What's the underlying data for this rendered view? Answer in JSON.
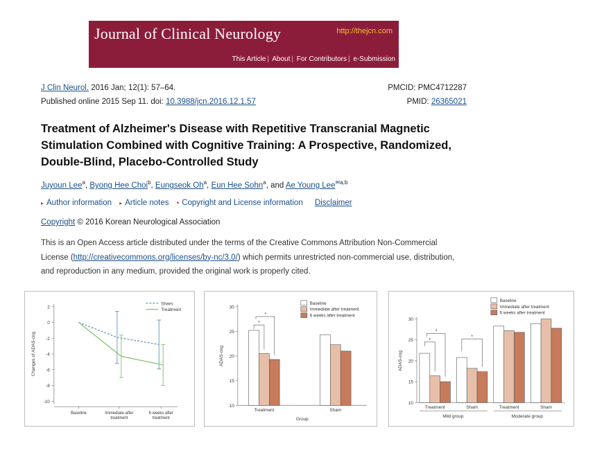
{
  "banner": {
    "journal_title": "Journal of Clinical Neurology",
    "url": "http://thejcn.com",
    "nav": [
      "This Article",
      "About",
      "For Contributors",
      "e-Submission"
    ]
  },
  "citation": {
    "journal_abbrev": "J Clin Neurol.",
    "issue": "2016 Jan; 12(1): 57–64.",
    "published_prefix": "Published online 2015 Sep 11. doi:",
    "doi": "10.3988/jcn.2016.12.1.57",
    "pmcid_label": "PMCID:",
    "pmcid": "PMC4712287",
    "pmid_label": "PMID:",
    "pmid": "26365021"
  },
  "article": {
    "title": "Treatment of Alzheimer's Disease with Repetitive Transcranial Magnetic Stimulation Combined with Cognitive Training: A Prospective, Randomized, Double-Blind, Placebo-Controlled Study",
    "authors": [
      {
        "name": "Juyoun Lee",
        "sup": "a"
      },
      {
        "name": "Byong Hee Choi",
        "sup": "b"
      },
      {
        "name": "Eungseok Oh",
        "sup": "a"
      },
      {
        "name": "Eun Hee Sohn",
        "sup": "a"
      },
      {
        "name": "Ae Young Lee",
        "sup": "a,b"
      }
    ],
    "and_word": "and",
    "info_links": [
      "Author information",
      "Article notes",
      "Copyright and License information",
      "Disclaimer"
    ],
    "copyright_link": "Copyright",
    "copyright_text": "© 2016 Korean Neurological Association",
    "license_pre": "This is an Open Access article distributed under the terms of the Creative Commons Attribution Non-Commercial License (",
    "license_url": "http://creativecommons.org/licenses/by-nc/3.0/",
    "license_post": ") which permits unrestricted non-commercial use, distribution, and reproduction in any medium, provided the original work is properly cited."
  },
  "colors": {
    "banner_bg": "#8c1d3a",
    "banner_url": "#f2c230",
    "link": "#1a4f8b",
    "baseline_bar": "#ffffff",
    "immediate_bar": "#e7bfa8",
    "six_weeks_bar": "#c77a5c",
    "sham_line": "#6f9fb6",
    "treatment_line": "#8cc47a"
  },
  "chart_data": [
    {
      "type": "line",
      "ylabel": "Changes of ADAS-cog",
      "categories": [
        "Baseline",
        "Immediate after treatment",
        "6 weeks after treatment"
      ],
      "ylim": [
        -10,
        2
      ],
      "yticks": [
        2,
        0,
        -2,
        -4,
        -6,
        -8,
        -10
      ],
      "legend_position": "top-right",
      "series": [
        {
          "name": "Sham",
          "style": "dashed",
          "values": [
            0,
            -1.9,
            -2.8
          ],
          "error": [
            0,
            3.3,
            3.1
          ]
        },
        {
          "name": "Treatment",
          "style": "solid",
          "values": [
            0,
            -4.3,
            -5.4
          ],
          "error": [
            0,
            2.7,
            2.6
          ]
        }
      ]
    },
    {
      "type": "bar",
      "ylabel": "ADAS-cog",
      "xlabel": "Group",
      "categories": [
        "Treatment",
        "Sham"
      ],
      "ylim": [
        10,
        30
      ],
      "yticks": [
        10,
        15,
        20,
        25,
        30
      ],
      "legend_position": "top-right",
      "series": [
        {
          "name": "Baseline",
          "values": [
            25.2,
            24.3
          ]
        },
        {
          "name": "Immediate after treatment",
          "values": [
            20.5,
            22.3
          ]
        },
        {
          "name": "6 weeks after treatment",
          "values": [
            19.3,
            21.0
          ]
        }
      ],
      "significance_marker": "*"
    },
    {
      "type": "bar",
      "ylabel": "ADAS-cog",
      "categories": [
        "Treatment",
        "Sham",
        "Treatment",
        "Sham"
      ],
      "groups": [
        "Mild group",
        "Moderate group"
      ],
      "ylim": [
        10,
        30
      ],
      "yticks": [
        10,
        15,
        20,
        25,
        30
      ],
      "legend_position": "top-right",
      "series": [
        {
          "name": "Baseline",
          "values": [
            21.8,
            20.8,
            28.3,
            28.9
          ]
        },
        {
          "name": "Immediate after treatment",
          "values": [
            16.4,
            18.2,
            27.2,
            30.0
          ]
        },
        {
          "name": "6 weeks after treatment",
          "values": [
            15.0,
            17.4,
            26.8,
            27.8
          ]
        }
      ],
      "significance_marker": "*"
    }
  ]
}
